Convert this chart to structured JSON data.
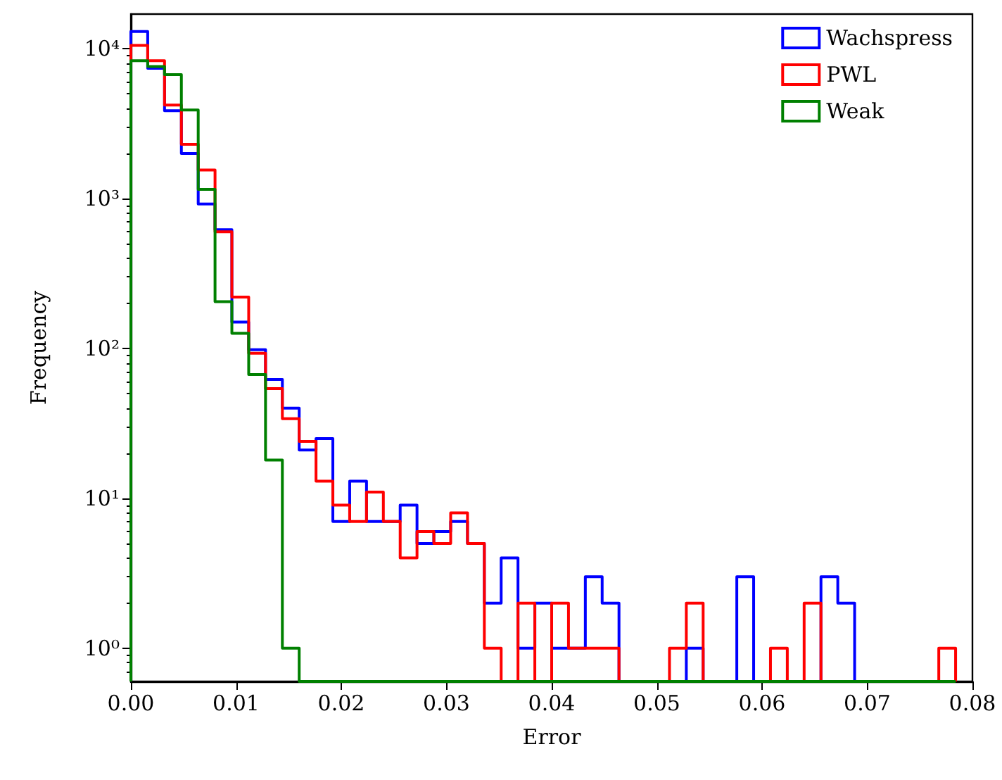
{
  "chart_data": {
    "type": "histogram",
    "xlabel": "Error",
    "ylabel": "Frequency",
    "log": "y",
    "grid": false,
    "legend": "top right",
    "bins": [
      0,
      0.0016,
      0.0032,
      0.0048,
      0.0064,
      0.008,
      0.0096,
      0.0112,
      0.0128,
      0.0144,
      0.016,
      0.0176,
      0.0192,
      0.0208,
      0.0224,
      0.024,
      0.0256,
      0.0272,
      0.0288,
      0.0304,
      0.032,
      0.0336,
      0.0352,
      0.0368,
      0.0384,
      0.04,
      0.0416,
      0.0432,
      0.0448,
      0.0464,
      0.048,
      0.0496,
      0.0512,
      0.0528,
      0.0544,
      0.056,
      0.0576,
      0.0592,
      0.0608,
      0.0624,
      0.064,
      0.0656,
      0.0672,
      0.0688,
      0.0704,
      0.072,
      0.0736,
      0.0752,
      0.0768,
      0.0784
    ],
    "series": [
      {
        "name": "Wachspress",
        "color": "#0000ff",
        "values": [
          13000,
          7400,
          3850,
          2000,
          920,
          620,
          150,
          98,
          62,
          40,
          21,
          25,
          7,
          13,
          7,
          7,
          9,
          5,
          6,
          7,
          5,
          2,
          4,
          1,
          2,
          1,
          1,
          3,
          2,
          null,
          null,
          null,
          null,
          1,
          null,
          null,
          3,
          null,
          null,
          null,
          null,
          3,
          2,
          null,
          null,
          null,
          null,
          null,
          null
        ]
      },
      {
        "name": "PWL",
        "color": "#ff0000",
        "values": [
          10500,
          8300,
          4200,
          2300,
          1550,
          600,
          220,
          93,
          54,
          34,
          24,
          13,
          9,
          7,
          11,
          7,
          4,
          6,
          5,
          8,
          5,
          1,
          null,
          2,
          null,
          2,
          1,
          1,
          1,
          null,
          null,
          null,
          1,
          2,
          null,
          null,
          null,
          null,
          1,
          null,
          2,
          null,
          null,
          null,
          null,
          null,
          null,
          null,
          1
        ]
      },
      {
        "name": "Weak",
        "color": "#008000",
        "values": [
          8300,
          7600,
          6700,
          3900,
          1150,
          205,
          126,
          67,
          18,
          1,
          null,
          null,
          null,
          null,
          null,
          null,
          null,
          null,
          null,
          null,
          null,
          null,
          null,
          null,
          null,
          null,
          null,
          null,
          null,
          null,
          null,
          null,
          null,
          null,
          null,
          null,
          null,
          null,
          null,
          null,
          null,
          null,
          null,
          null,
          null,
          null,
          null,
          null,
          null
        ]
      }
    ],
    "xlim": [
      0,
      0.08
    ],
    "xticks": [
      {
        "value": 0,
        "label": "0.00"
      },
      {
        "value": 0.01,
        "label": "0.01"
      },
      {
        "value": 0.02,
        "label": "0.02"
      },
      {
        "value": 0.03,
        "label": "0.03"
      },
      {
        "value": 0.04,
        "label": "0.04"
      },
      {
        "value": 0.05,
        "label": "0.05"
      },
      {
        "value": 0.06,
        "label": "0.06"
      },
      {
        "value": 0.07,
        "label": "0.07"
      },
      {
        "value": 0.08,
        "label": "0.08"
      }
    ],
    "ylim": [
      0.6,
      17000
    ],
    "yticks": [
      {
        "value": 1,
        "label": "10⁰"
      },
      {
        "value": 10,
        "label": "10¹"
      },
      {
        "value": 100,
        "label": "10²"
      },
      {
        "value": 1000,
        "label": "10³"
      },
      {
        "value": 10000,
        "label": "10⁴"
      }
    ]
  }
}
